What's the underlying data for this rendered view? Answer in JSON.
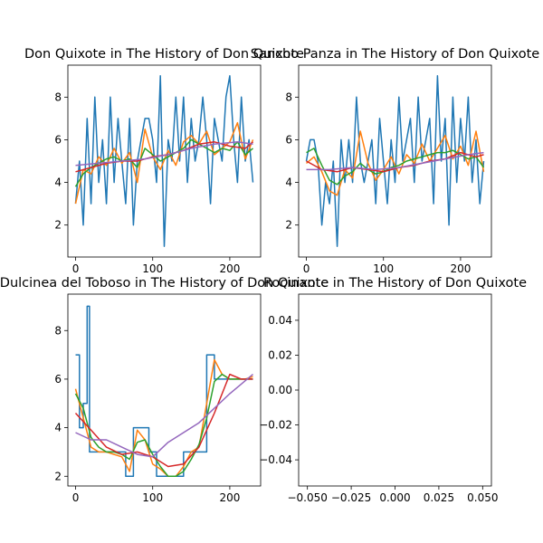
{
  "chart_data": [
    {
      "type": "line",
      "title": "Don Quixote in The History of Don Quixote",
      "xlim": [
        -10,
        240
      ],
      "ylim": [
        0.5,
        9.5
      ],
      "xticks": [
        0,
        100,
        200
      ],
      "yticks": [
        2,
        4,
        6,
        8
      ],
      "grid": false,
      "series": [
        {
          "color": "#1f77b4",
          "x": [
            0,
            5,
            10,
            15,
            20,
            25,
            30,
            35,
            40,
            45,
            50,
            55,
            60,
            65,
            70,
            75,
            80,
            85,
            90,
            95,
            100,
            105,
            110,
            115,
            120,
            125,
            130,
            135,
            140,
            145,
            150,
            155,
            160,
            165,
            170,
            175,
            180,
            185,
            190,
            195,
            200,
            205,
            210,
            215,
            220,
            225,
            230
          ],
          "y": [
            3,
            5,
            2,
            7,
            3,
            8,
            4,
            6,
            3,
            8,
            4,
            7,
            5,
            3,
            7,
            2,
            5,
            6,
            7,
            7,
            6,
            4,
            9,
            1,
            6,
            5,
            8,
            5,
            8,
            4,
            7,
            5,
            6,
            8,
            6,
            3,
            7,
            6,
            5,
            8,
            9,
            6,
            4,
            8,
            5,
            6,
            4
          ]
        },
        {
          "color": "#ff7f0e",
          "x": [
            0,
            10,
            20,
            30,
            40,
            50,
            60,
            70,
            80,
            90,
            100,
            110,
            120,
            130,
            140,
            150,
            160,
            170,
            180,
            190,
            200,
            210,
            220,
            230
          ],
          "y": [
            3.0,
            4.6,
            4.4,
            5.2,
            4.8,
            5.6,
            4.9,
            5.4,
            4.0,
            6.5,
            5.2,
            4.6,
            5.5,
            4.8,
            5.9,
            6.2,
            5.8,
            6.4,
            5.3,
            5.6,
            5.9,
            6.8,
            5.1,
            6.0
          ]
        },
        {
          "color": "#2ca02c",
          "x": [
            0,
            10,
            20,
            30,
            40,
            50,
            60,
            70,
            80,
            90,
            100,
            110,
            120,
            130,
            140,
            150,
            160,
            170,
            180,
            190,
            200,
            210,
            220,
            230
          ],
          "y": [
            3.8,
            4.4,
            4.7,
            4.9,
            5.1,
            5.2,
            5.0,
            5.1,
            4.7,
            5.6,
            5.3,
            5.0,
            5.2,
            5.4,
            5.6,
            6.0,
            5.8,
            5.6,
            5.4,
            5.6,
            5.5,
            5.9,
            5.3,
            5.6
          ]
        },
        {
          "color": "#d62728",
          "x": [
            0,
            20,
            40,
            60,
            80,
            100,
            120,
            140,
            160,
            180,
            200,
            220,
            230
          ],
          "y": [
            4.5,
            4.7,
            4.9,
            5.0,
            5.0,
            5.2,
            5.3,
            5.5,
            5.8,
            5.9,
            5.7,
            5.6,
            5.9
          ]
        },
        {
          "color": "#9467bd",
          "x": [
            0,
            30,
            60,
            90,
            120,
            150,
            180,
            210,
            230
          ],
          "y": [
            4.8,
            4.9,
            5.0,
            5.1,
            5.3,
            5.6,
            5.8,
            5.9,
            5.8
          ]
        }
      ]
    },
    {
      "type": "line",
      "title": "Sancho Panza in The History of Don Quixote",
      "xlim": [
        -10,
        240
      ],
      "ylim": [
        0.5,
        9.5
      ],
      "xticks": [
        0,
        100,
        200
      ],
      "yticks": [
        2,
        4,
        6,
        8
      ],
      "grid": false,
      "series": [
        {
          "color": "#1f77b4",
          "x": [
            0,
            5,
            10,
            15,
            20,
            25,
            30,
            35,
            40,
            45,
            50,
            55,
            60,
            65,
            70,
            75,
            80,
            85,
            90,
            95,
            100,
            105,
            110,
            115,
            120,
            125,
            130,
            135,
            140,
            145,
            150,
            155,
            160,
            165,
            170,
            175,
            180,
            185,
            190,
            195,
            200,
            205,
            210,
            215,
            220,
            225,
            230
          ],
          "y": [
            5,
            6,
            6,
            5,
            2,
            4,
            3,
            5,
            1,
            6,
            4,
            6,
            4,
            8,
            5,
            4,
            5,
            6,
            3,
            7,
            5,
            3,
            6,
            4,
            8,
            5,
            6,
            7,
            4,
            8,
            5,
            6,
            7,
            3,
            9,
            5,
            7,
            2,
            8,
            4,
            7,
            5,
            8,
            4,
            6,
            3,
            5
          ]
        },
        {
          "color": "#ff7f0e",
          "x": [
            0,
            10,
            20,
            30,
            40,
            50,
            60,
            70,
            80,
            90,
            100,
            110,
            120,
            130,
            140,
            150,
            160,
            170,
            180,
            190,
            200,
            210,
            220,
            230
          ],
          "y": [
            4.9,
            5.2,
            4.5,
            3.6,
            3.4,
            4.6,
            4.2,
            6.4,
            4.9,
            4.1,
            4.6,
            5.2,
            4.4,
            5.3,
            4.9,
            5.8,
            5.0,
            5.6,
            6.2,
            5.1,
            5.7,
            4.8,
            6.4,
            4.5
          ]
        },
        {
          "color": "#2ca02c",
          "x": [
            0,
            10,
            20,
            30,
            40,
            50,
            60,
            70,
            80,
            90,
            100,
            110,
            120,
            130,
            140,
            150,
            160,
            170,
            180,
            190,
            200,
            210,
            220,
            230
          ],
          "y": [
            5.4,
            5.6,
            4.8,
            4.1,
            3.9,
            4.3,
            4.5,
            4.9,
            4.6,
            4.4,
            4.5,
            4.7,
            4.8,
            5.0,
            5.1,
            5.2,
            5.3,
            5.4,
            5.4,
            5.5,
            5.3,
            5.1,
            5.2,
            4.7
          ]
        },
        {
          "color": "#d62728",
          "x": [
            0,
            20,
            40,
            60,
            80,
            100,
            120,
            140,
            160,
            180,
            200,
            220,
            230
          ],
          "y": [
            5.0,
            4.6,
            4.5,
            4.7,
            4.6,
            4.5,
            4.7,
            4.8,
            5.0,
            5.1,
            5.4,
            5.2,
            5.3
          ]
        },
        {
          "color": "#9467bd",
          "x": [
            0,
            30,
            60,
            90,
            120,
            150,
            180,
            210,
            230
          ],
          "y": [
            4.6,
            4.6,
            4.7,
            4.6,
            4.7,
            4.9,
            5.1,
            5.3,
            5.4
          ]
        }
      ]
    },
    {
      "type": "line",
      "title": "Dulcinea del Toboso in The History of Don Quixote",
      "xlim": [
        -10,
        240
      ],
      "ylim": [
        1.6,
        9.5
      ],
      "xticks": [
        0,
        100,
        200
      ],
      "yticks": [
        2,
        4,
        6,
        8
      ],
      "grid": false,
      "series": [
        {
          "color": "#1f77b4",
          "x": [
            0,
            5,
            5,
            10,
            10,
            15,
            15,
            18,
            18,
            20,
            20,
            65,
            65,
            75,
            75,
            95,
            95,
            105,
            105,
            140,
            140,
            170,
            170,
            180,
            180,
            230
          ],
          "y": [
            7,
            7,
            4,
            4,
            5,
            5,
            9,
            9,
            3,
            3,
            3,
            3,
            2,
            2,
            4,
            4,
            3,
            3,
            2,
            2,
            3,
            3,
            7,
            7,
            6,
            6
          ]
        },
        {
          "color": "#ff7f0e",
          "x": [
            0,
            10,
            20,
            30,
            40,
            50,
            60,
            70,
            80,
            90,
            100,
            110,
            120,
            130,
            140,
            150,
            160,
            170,
            180,
            190,
            200,
            210,
            220,
            230
          ],
          "y": [
            5.6,
            4.4,
            3.2,
            3.0,
            3.0,
            2.9,
            2.8,
            2.2,
            3.9,
            3.5,
            2.5,
            2.3,
            2.0,
            2.0,
            2.4,
            3.0,
            3.2,
            5.0,
            6.8,
            6.2,
            6.0,
            6.0,
            6.0,
            6.1
          ]
        },
        {
          "color": "#2ca02c",
          "x": [
            0,
            10,
            20,
            30,
            40,
            50,
            60,
            70,
            80,
            90,
            100,
            110,
            120,
            130,
            140,
            150,
            160,
            170,
            180,
            190,
            200,
            210,
            220,
            230
          ],
          "y": [
            5.4,
            4.8,
            3.6,
            3.2,
            3.0,
            3.0,
            2.9,
            2.7,
            3.4,
            3.5,
            2.9,
            2.4,
            2.0,
            2.0,
            2.2,
            2.7,
            3.3,
            4.4,
            5.9,
            6.2,
            6.0,
            6.0,
            6.0,
            6.0
          ]
        },
        {
          "color": "#d62728",
          "x": [
            0,
            20,
            40,
            60,
            80,
            100,
            120,
            140,
            160,
            180,
            200,
            215,
            230
          ],
          "y": [
            4.6,
            3.9,
            3.2,
            2.9,
            3.0,
            2.8,
            2.4,
            2.5,
            3.2,
            4.6,
            6.2,
            6.0,
            6.0
          ]
        },
        {
          "color": "#9467bd",
          "x": [
            0,
            20,
            40,
            60,
            80,
            100,
            120,
            140,
            160,
            180,
            200,
            215,
            230
          ],
          "y": [
            3.8,
            3.5,
            3.5,
            3.2,
            2.9,
            2.8,
            3.4,
            3.8,
            4.2,
            4.8,
            5.4,
            5.8,
            6.2
          ]
        }
      ]
    },
    {
      "type": "line",
      "title": "Rocinante in The History of Don Quixote",
      "xlim": [
        -0.055,
        0.055
      ],
      "ylim": [
        -0.055,
        0.055
      ],
      "xticks": [
        -0.05,
        -0.025,
        0.0,
        0.025,
        0.05
      ],
      "xtick_labels": [
        "−0.050",
        "−0.025",
        "0.000",
        "0.025",
        "0.050"
      ],
      "yticks": [
        -0.04,
        -0.02,
        0.0,
        0.02,
        0.04
      ],
      "ytick_labels": [
        "−0.04",
        "−0.02",
        "0.00",
        "0.02",
        "0.04"
      ],
      "grid": false,
      "series": []
    }
  ]
}
